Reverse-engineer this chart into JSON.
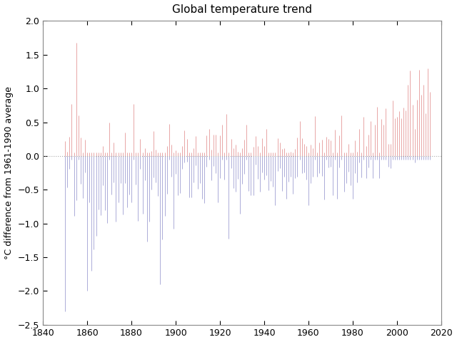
{
  "title": "Global temperature trend",
  "ylabel": "°C difference from 1961-1990 average",
  "xlim": [
    1840,
    2020
  ],
  "ylim": [
    -2.5,
    2.0
  ],
  "xticks": [
    1840,
    1860,
    1880,
    1900,
    1920,
    1940,
    1960,
    1980,
    2000,
    2020
  ],
  "yticks": [
    -2.5,
    -2.0,
    -1.5,
    -1.0,
    -0.5,
    0.0,
    0.5,
    1.0,
    1.5,
    2.0
  ],
  "color_positive": "#e08888",
  "color_negative": "#9090cc",
  "zero_line_color": "#aaaaaa",
  "background_color": "#ffffff",
  "title_fontsize": 11,
  "label_fontsize": 9,
  "tick_fontsize": 9,
  "seed": 42,
  "years_start": 1850,
  "years_end": 2015
}
